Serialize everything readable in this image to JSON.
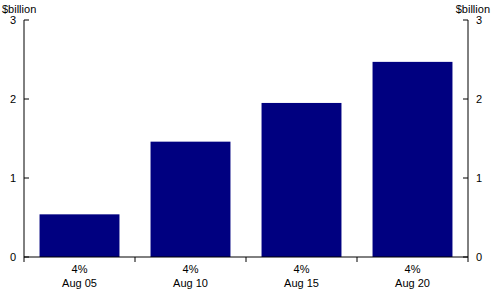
{
  "chart_data": {
    "type": "bar",
    "y_label": "$billion",
    "y2_label": "$billion",
    "categories": [
      "4%\nAug 05",
      "4%\nAug 10",
      "4%\nAug 15",
      "4%\nAug 20"
    ],
    "values": [
      0.54,
      1.46,
      1.95,
      2.47
    ],
    "color": "#000080",
    "ylim": [
      0,
      3
    ],
    "yticks": [
      0,
      1,
      2,
      3
    ],
    "y2lim": [
      0,
      3
    ],
    "y2ticks": [
      0,
      1,
      2,
      3
    ],
    "grid": false
  }
}
